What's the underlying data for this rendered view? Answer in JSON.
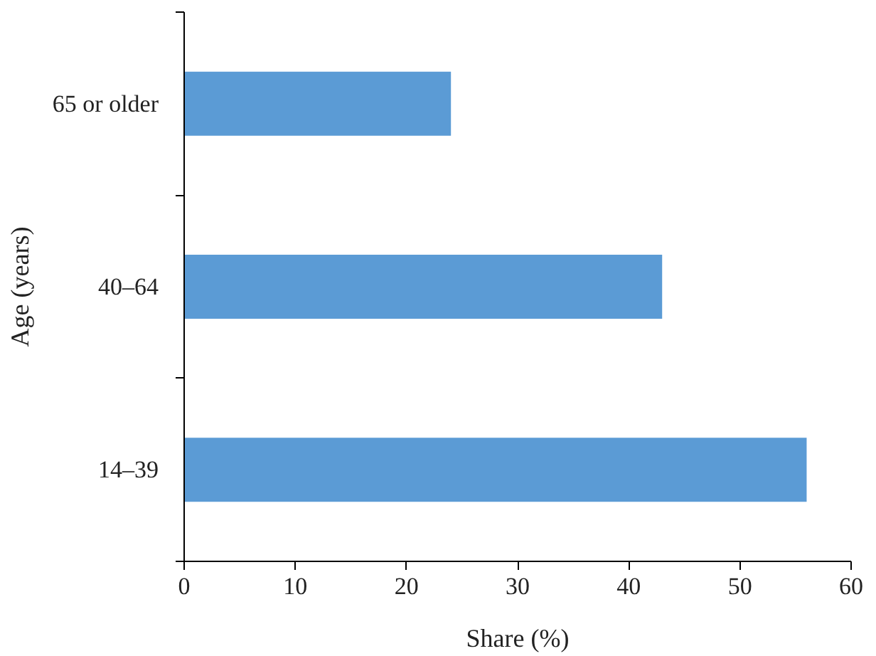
{
  "chart_data": {
    "type": "bar",
    "orientation": "horizontal",
    "categories": [
      "65 or older",
      "40–64",
      "14–39"
    ],
    "values": [
      24,
      43,
      56
    ],
    "color": "#5b9bd5",
    "xlabel": "Share (%)",
    "ylabel": "Age (years)",
    "xlim": [
      0,
      60
    ],
    "xticks": [
      0,
      10,
      20,
      30,
      40,
      50,
      60
    ],
    "grid": false
  }
}
